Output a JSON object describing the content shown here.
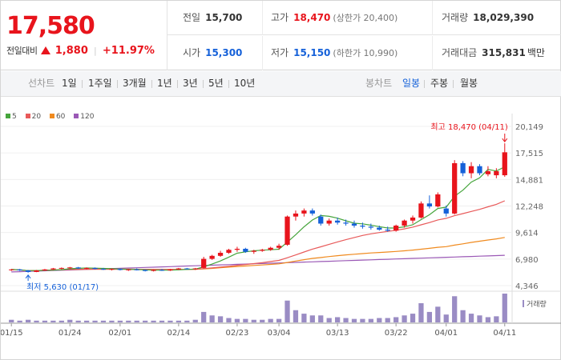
{
  "summary": {
    "current_price": "17,580",
    "change_label": "전일대비",
    "change_amount": "1,880",
    "change_rate": "+11.97%",
    "prev_close": {
      "label": "전일",
      "value": "15,700"
    },
    "high": {
      "label": "고가",
      "value": "18,470",
      "sub": "(상한가 20,400)"
    },
    "volume": {
      "label": "거래량",
      "value": "18,029,390"
    },
    "open": {
      "label": "시가",
      "value": "15,300"
    },
    "low": {
      "label": "저가",
      "value": "15,150",
      "sub": "(하한가 10,990)"
    },
    "trade_value": {
      "label": "거래대금",
      "value": "315,831",
      "unit": "백만"
    }
  },
  "toolbar": {
    "period_label": "선차트",
    "periods": [
      "1일",
      "1주일",
      "3개월",
      "1년",
      "3년",
      "5년",
      "10년"
    ],
    "candle_label": "봉차트",
    "candles": [
      "일봉",
      "주봉",
      "월봉"
    ],
    "active_candle": "일봉"
  },
  "chart_data": {
    "type": "candlestick",
    "legend": [
      {
        "name": "5",
        "color": "#46a53c"
      },
      {
        "name": "20",
        "color": "#e85a5a"
      },
      {
        "name": "60",
        "color": "#f08a1e"
      },
      {
        "name": "120",
        "color": "#9b59b6"
      }
    ],
    "y_ticks": [
      "20,149",
      "17,515",
      "14,881",
      "12,248",
      "9,614",
      "6,980",
      "4,346"
    ],
    "ylim": [
      4346,
      20149
    ],
    "x_tick_labels": [
      "01/15",
      "01/24",
      "02/01",
      "02/14",
      "02/23",
      "03/04",
      "03/13",
      "03/22",
      "04/01",
      "04/11"
    ],
    "volume_label": "거래량",
    "annotation_high": "최고 18,470 (04/11)",
    "annotation_low": "최저 5,630 (01/17)",
    "up_color": "#e8141c",
    "down_color": "#1561d9",
    "candles": [
      {
        "date": "01/15",
        "o": 5900,
        "h": 6000,
        "l": 5800,
        "c": 5950
      },
      {
        "date": "01/16",
        "o": 5950,
        "h": 6000,
        "l": 5800,
        "c": 5850
      },
      {
        "date": "01/17",
        "o": 5850,
        "h": 5900,
        "l": 5630,
        "c": 5700
      },
      {
        "date": "01/18",
        "o": 5700,
        "h": 5900,
        "l": 5680,
        "c": 5850
      },
      {
        "date": "01/19",
        "o": 5850,
        "h": 6000,
        "l": 5800,
        "c": 5950
      },
      {
        "date": "01/22",
        "o": 5950,
        "h": 6100,
        "l": 5900,
        "c": 6050
      },
      {
        "date": "01/23",
        "o": 6050,
        "h": 6150,
        "l": 5950,
        "c": 6100
      },
      {
        "date": "01/24",
        "o": 6100,
        "h": 6200,
        "l": 6000,
        "c": 6150
      },
      {
        "date": "01/25",
        "o": 6150,
        "h": 6200,
        "l": 6000,
        "c": 6050
      },
      {
        "date": "01/26",
        "o": 6050,
        "h": 6150,
        "l": 5950,
        "c": 6100
      },
      {
        "date": "01/29",
        "o": 6100,
        "h": 6150,
        "l": 5950,
        "c": 6000
      },
      {
        "date": "01/30",
        "o": 6000,
        "h": 6100,
        "l": 5900,
        "c": 5950
      },
      {
        "date": "01/31",
        "o": 5950,
        "h": 6050,
        "l": 5850,
        "c": 6000
      },
      {
        "date": "02/01",
        "o": 6000,
        "h": 6050,
        "l": 5850,
        "c": 5900
      },
      {
        "date": "02/02",
        "o": 5900,
        "h": 6000,
        "l": 5800,
        "c": 5950
      },
      {
        "date": "02/05",
        "o": 5950,
        "h": 6050,
        "l": 5850,
        "c": 5900
      },
      {
        "date": "02/06",
        "o": 5900,
        "h": 5950,
        "l": 5750,
        "c": 5800
      },
      {
        "date": "02/07",
        "o": 5800,
        "h": 5950,
        "l": 5750,
        "c": 5900
      },
      {
        "date": "02/08",
        "o": 5900,
        "h": 6000,
        "l": 5800,
        "c": 5850
      },
      {
        "date": "02/13",
        "o": 5850,
        "h": 6000,
        "l": 5800,
        "c": 5950
      },
      {
        "date": "02/14",
        "o": 5950,
        "h": 6100,
        "l": 5900,
        "c": 6050
      },
      {
        "date": "02/15",
        "o": 6050,
        "h": 6100,
        "l": 5950,
        "c": 6000
      },
      {
        "date": "02/16",
        "o": 6000,
        "h": 6100,
        "l": 5900,
        "c": 6050
      },
      {
        "date": "02/19",
        "o": 6100,
        "h": 7200,
        "l": 6050,
        "c": 7000
      },
      {
        "date": "02/20",
        "o": 7000,
        "h": 7400,
        "l": 6900,
        "c": 7300
      },
      {
        "date": "02/21",
        "o": 7300,
        "h": 7800,
        "l": 7200,
        "c": 7600
      },
      {
        "date": "02/22",
        "o": 7600,
        "h": 8000,
        "l": 7500,
        "c": 7900
      },
      {
        "date": "02/23",
        "o": 7900,
        "h": 8200,
        "l": 7700,
        "c": 8000
      },
      {
        "date": "02/26",
        "o": 8000,
        "h": 8100,
        "l": 7600,
        "c": 7700
      },
      {
        "date": "02/27",
        "o": 7700,
        "h": 7900,
        "l": 7500,
        "c": 7800
      },
      {
        "date": "02/28",
        "o": 7800,
        "h": 8000,
        "l": 7700,
        "c": 7900
      },
      {
        "date": "02/29",
        "o": 7900,
        "h": 8200,
        "l": 7800,
        "c": 8100
      },
      {
        "date": "03/04",
        "o": 8100,
        "h": 8500,
        "l": 7900,
        "c": 8300
      },
      {
        "date": "03/05",
        "o": 8400,
        "h": 11300,
        "l": 8300,
        "c": 11200
      },
      {
        "date": "03/06",
        "o": 11200,
        "h": 11800,
        "l": 10800,
        "c": 11500
      },
      {
        "date": "03/07",
        "o": 11500,
        "h": 12000,
        "l": 11200,
        "c": 11800
      },
      {
        "date": "03/08",
        "o": 11800,
        "h": 12000,
        "l": 11300,
        "c": 11500
      },
      {
        "date": "03/11",
        "o": 11200,
        "h": 11400,
        "l": 10300,
        "c": 10500
      },
      {
        "date": "03/12",
        "o": 10500,
        "h": 11000,
        "l": 10300,
        "c": 10800
      },
      {
        "date": "03/13",
        "o": 10800,
        "h": 11100,
        "l": 10400,
        "c": 10600
      },
      {
        "date": "03/14",
        "o": 10600,
        "h": 10900,
        "l": 10300,
        "c": 10500
      },
      {
        "date": "03/15",
        "o": 10500,
        "h": 10800,
        "l": 10100,
        "c": 10300
      },
      {
        "date": "03/18",
        "o": 10300,
        "h": 10600,
        "l": 10000,
        "c": 10200
      },
      {
        "date": "03/19",
        "o": 10200,
        "h": 10500,
        "l": 9900,
        "c": 10100
      },
      {
        "date": "03/20",
        "o": 10100,
        "h": 10300,
        "l": 9800,
        "c": 9900
      },
      {
        "date": "03/21",
        "o": 9900,
        "h": 10200,
        "l": 9700,
        "c": 9800
      },
      {
        "date": "03/22",
        "o": 9800,
        "h": 10400,
        "l": 9700,
        "c": 10300
      },
      {
        "date": "03/25",
        "o": 10300,
        "h": 10900,
        "l": 10100,
        "c": 10800
      },
      {
        "date": "03/26",
        "o": 10800,
        "h": 11300,
        "l": 10500,
        "c": 11100
      },
      {
        "date": "03/27",
        "o": 11100,
        "h": 12700,
        "l": 11000,
        "c": 12500
      },
      {
        "date": "03/28",
        "o": 12500,
        "h": 13300,
        "l": 12000,
        "c": 12200
      },
      {
        "date": "03/29",
        "o": 12200,
        "h": 13600,
        "l": 12100,
        "c": 13400
      },
      {
        "date": "04/01",
        "o": 12000,
        "h": 12300,
        "l": 11200,
        "c": 11500
      },
      {
        "date": "04/02",
        "o": 11500,
        "h": 16800,
        "l": 11400,
        "c": 16500
      },
      {
        "date": "04/03",
        "o": 16500,
        "h": 16700,
        "l": 15200,
        "c": 15500
      },
      {
        "date": "04/04",
        "o": 15500,
        "h": 16600,
        "l": 15000,
        "c": 16200
      },
      {
        "date": "04/05",
        "o": 16200,
        "h": 16400,
        "l": 15300,
        "c": 15500
      },
      {
        "date": "04/08",
        "o": 15400,
        "h": 16200,
        "l": 15200,
        "c": 15700
      },
      {
        "date": "04/09",
        "o": 15300,
        "h": 16000,
        "l": 15000,
        "c": 15700
      },
      {
        "date": "04/11",
        "o": 15300,
        "h": 18470,
        "l": 15150,
        "c": 17580
      }
    ],
    "volumes": [
      3,
      2,
      3,
      2,
      2,
      2,
      2,
      3,
      2,
      2,
      2,
      2,
      2,
      2,
      2,
      2,
      2,
      2,
      2,
      2,
      2,
      2,
      3,
      12,
      8,
      7,
      5,
      4,
      4,
      3,
      3,
      4,
      4,
      25,
      14,
      10,
      8,
      8,
      5,
      6,
      5,
      4,
      4,
      4,
      5,
      5,
      6,
      8,
      10,
      22,
      12,
      18,
      9,
      30,
      14,
      10,
      8,
      6,
      7,
      33
    ]
  }
}
